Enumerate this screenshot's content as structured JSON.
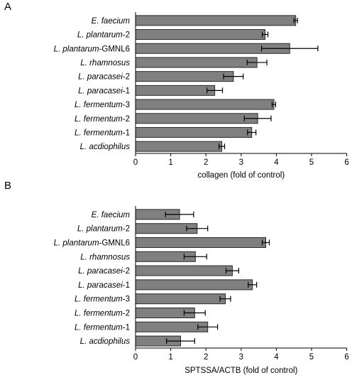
{
  "chart_data": [
    {
      "type": "bar",
      "orientation": "horizontal",
      "panel_label": "A",
      "categories": [
        {
          "species": "E. faecium",
          "strain": ""
        },
        {
          "species": "L. plantarum",
          "strain": "-2"
        },
        {
          "species": "L. plantarum",
          "strain": "-GMNL6"
        },
        {
          "species": "L. rhamnosus",
          "strain": ""
        },
        {
          "species": "L. paracasei",
          "strain": "-2"
        },
        {
          "species": "L. paracasei",
          "strain": "-1"
        },
        {
          "species": "L. fermentum",
          "strain": "-3"
        },
        {
          "species": "L. fermentum",
          "strain": "-2"
        },
        {
          "species": "L. fermentum",
          "strain": "-1"
        },
        {
          "species": "L. acdiophilus",
          "strain": ""
        }
      ],
      "values": [
        4.55,
        3.68,
        4.38,
        3.45,
        2.78,
        2.25,
        3.93,
        3.47,
        3.3,
        2.45
      ],
      "errors": [
        0.05,
        0.08,
        0.8,
        0.28,
        0.28,
        0.22,
        0.05,
        0.38,
        0.12,
        0.08
      ],
      "xlabel": "collagen (fold of control)",
      "xlim": [
        0,
        6
      ],
      "xticks": [
        "0",
        "1",
        "2",
        "3",
        "4",
        "5",
        "6"
      ],
      "grid": false,
      "bar_color": "#808080"
    },
    {
      "type": "bar",
      "orientation": "horizontal",
      "panel_label": "B",
      "categories": [
        {
          "species": "E. faecium",
          "strain": ""
        },
        {
          "species": "L. plantarum",
          "strain": "-2"
        },
        {
          "species": "L. plantarum",
          "strain": "-GMNL6"
        },
        {
          "species": "L. rhamnosus",
          "strain": ""
        },
        {
          "species": "L. paracasei",
          "strain": "-2"
        },
        {
          "species": "L. paracasei",
          "strain": "-1"
        },
        {
          "species": "L. fermentum",
          "strain": "-3"
        },
        {
          "species": "L. fermentum",
          "strain": "-2"
        },
        {
          "species": "L. fermentum",
          "strain": "-1"
        },
        {
          "species": "L. acdiophilus",
          "strain": ""
        }
      ],
      "values": [
        1.25,
        1.75,
        3.7,
        1.7,
        2.75,
        3.32,
        2.55,
        1.68,
        2.05,
        1.28
      ],
      "errors": [
        0.4,
        0.3,
        0.1,
        0.32,
        0.18,
        0.12,
        0.15,
        0.3,
        0.28,
        0.4
      ],
      "xlabel": "SPTSSA/ACTB (fold of control)",
      "xlim": [
        0,
        6
      ],
      "xticks": [
        "0",
        "1",
        "2",
        "3",
        "4",
        "5",
        "6"
      ],
      "grid": false,
      "bar_color": "#808080"
    }
  ]
}
